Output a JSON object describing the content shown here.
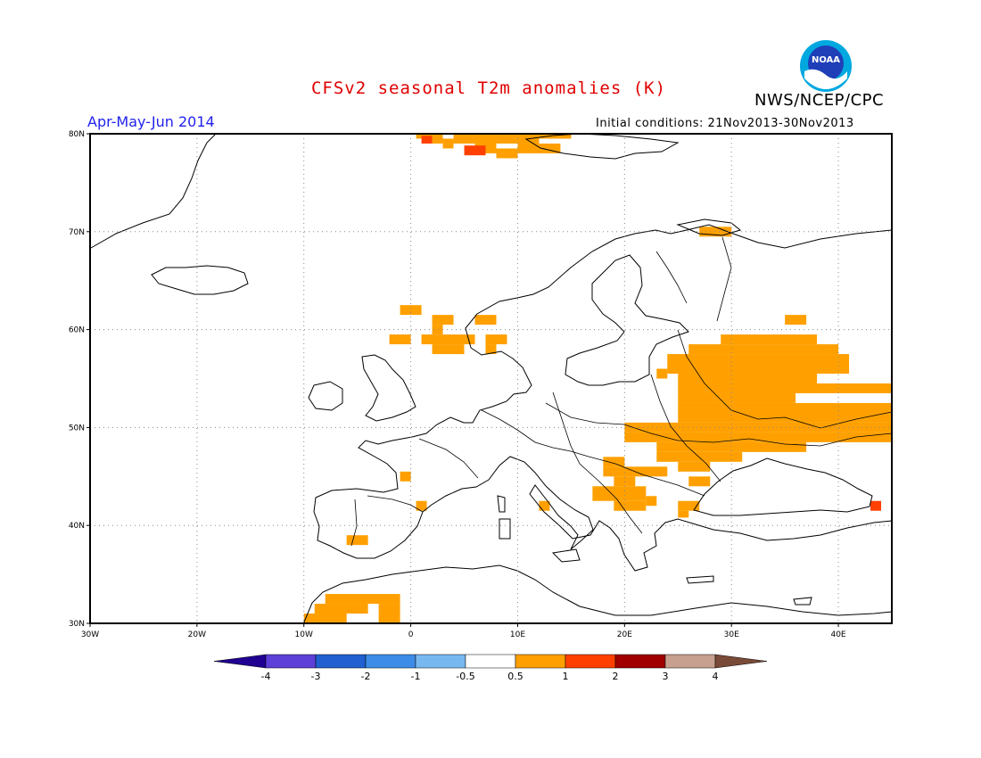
{
  "header": {
    "title": "CFSv2 seasonal T2m anomalies (K)",
    "agency": "NWS/NCEP/CPC",
    "period": "Apr-May-Jun 2014",
    "initial_conditions": "Initial conditions: 21Nov2013-30Nov2013",
    "logo_text": "NOAA"
  },
  "map": {
    "lon_range": [
      -30,
      45
    ],
    "lat_range": [
      30,
      80
    ],
    "lon_ticks": [
      {
        "value": -30,
        "label": "30W"
      },
      {
        "value": -20,
        "label": "20W"
      },
      {
        "value": -10,
        "label": "10W"
      },
      {
        "value": 0,
        "label": "0"
      },
      {
        "value": 10,
        "label": "10E"
      },
      {
        "value": 20,
        "label": "20E"
      },
      {
        "value": 30,
        "label": "30E"
      },
      {
        "value": 40,
        "label": "40E"
      }
    ],
    "lat_ticks": [
      {
        "value": 30,
        "label": "30N"
      },
      {
        "value": 40,
        "label": "40N"
      },
      {
        "value": 50,
        "label": "50N"
      },
      {
        "value": 60,
        "label": "60N"
      },
      {
        "value": 70,
        "label": "70N"
      },
      {
        "value": 80,
        "label": "80N"
      }
    ],
    "grid": "dotted",
    "anomaly_cells": [
      {
        "lon": [
          0.5,
          2
        ],
        "lat": [
          79.5,
          80
        ],
        "level": "0.5-1"
      },
      {
        "lon": [
          2,
          3
        ],
        "lat": [
          79,
          80
        ],
        "level": "0.5-1"
      },
      {
        "lon": [
          4,
          12
        ],
        "lat": [
          79,
          80
        ],
        "level": "0.5-1"
      },
      {
        "lon": [
          12,
          15
        ],
        "lat": [
          79.5,
          80
        ],
        "level": "0.5-1"
      },
      {
        "lon": [
          3,
          4
        ],
        "lat": [
          78.5,
          79.5
        ],
        "level": "0.5-1"
      },
      {
        "lon": [
          6,
          8
        ],
        "lat": [
          78,
          79
        ],
        "level": "0.5-1"
      },
      {
        "lon": [
          10,
          14
        ],
        "lat": [
          78,
          79
        ],
        "level": "0.5-1"
      },
      {
        "lon": [
          8,
          10
        ],
        "lat": [
          77.5,
          78.5
        ],
        "level": "0.5-1"
      },
      {
        "lon": [
          1,
          2
        ],
        "lat": [
          79,
          79.8
        ],
        "level": "1-2"
      },
      {
        "lon": [
          5,
          7
        ],
        "lat": [
          77.8,
          78.8
        ],
        "level": "1-2"
      },
      {
        "lon": [
          27,
          30
        ],
        "lat": [
          69.5,
          70.5
        ],
        "level": "0.5-1"
      },
      {
        "lon": [
          -1,
          1
        ],
        "lat": [
          61.5,
          62.5
        ],
        "level": "0.5-1"
      },
      {
        "lon": [
          2,
          4
        ],
        "lat": [
          60.5,
          61.5
        ],
        "level": "0.5-1"
      },
      {
        "lon": [
          2,
          3
        ],
        "lat": [
          59.5,
          60.5
        ],
        "level": "0.5-1"
      },
      {
        "lon": [
          6,
          8
        ],
        "lat": [
          60.5,
          61.5
        ],
        "level": "0.5-1"
      },
      {
        "lon": [
          35,
          37
        ],
        "lat": [
          60.5,
          61.5
        ],
        "level": "0.5-1"
      },
      {
        "lon": [
          -2,
          0
        ],
        "lat": [
          58.5,
          59.5
        ],
        "level": "0.5-1"
      },
      {
        "lon": [
          1,
          6
        ],
        "lat": [
          58.5,
          59.5
        ],
        "level": "0.5-1"
      },
      {
        "lon": [
          2,
          5
        ],
        "lat": [
          57.5,
          58.5
        ],
        "level": "0.5-1"
      },
      {
        "lon": [
          7,
          9
        ],
        "lat": [
          58.5,
          59.5
        ],
        "level": "0.5-1"
      },
      {
        "lon": [
          7,
          8
        ],
        "lat": [
          57.5,
          58.5
        ],
        "level": "0.5-1"
      },
      {
        "lon": [
          29,
          38
        ],
        "lat": [
          58.5,
          59.5
        ],
        "level": "0.5-1"
      },
      {
        "lon": [
          26,
          40
        ],
        "lat": [
          57.5,
          58.5
        ],
        "level": "0.5-1"
      },
      {
        "lon": [
          24,
          41
        ],
        "lat": [
          55.5,
          57.5
        ],
        "level": "0.5-1"
      },
      {
        "lon": [
          23,
          24
        ],
        "lat": [
          55,
          56
        ],
        "level": "0.5-1"
      },
      {
        "lon": [
          25,
          38
        ],
        "lat": [
          54.5,
          55.5
        ],
        "level": "0.5-1"
      },
      {
        "lon": [
          25,
          45
        ],
        "lat": [
          53.5,
          54.5
        ],
        "level": "0.5-1"
      },
      {
        "lon": [
          25,
          36
        ],
        "lat": [
          52.5,
          53.5
        ],
        "level": "0.5-1"
      },
      {
        "lon": [
          25,
          45
        ],
        "lat": [
          50.5,
          52.5
        ],
        "level": "0.5-1"
      },
      {
        "lon": [
          20,
          45
        ],
        "lat": [
          49.5,
          50.5
        ],
        "level": "0.5-1"
      },
      {
        "lon": [
          20,
          45
        ],
        "lat": [
          48.5,
          49.5
        ],
        "level": "0.5-1"
      },
      {
        "lon": [
          23,
          37
        ],
        "lat": [
          47.5,
          48.5
        ],
        "level": "0.5-1"
      },
      {
        "lon": [
          23,
          31
        ],
        "lat": [
          46.5,
          47.5
        ],
        "level": "0.5-1"
      },
      {
        "lon": [
          25,
          28
        ],
        "lat": [
          45.5,
          46.5
        ],
        "level": "0.5-1"
      },
      {
        "lon": [
          18,
          20
        ],
        "lat": [
          46,
          47
        ],
        "level": "0.5-1"
      },
      {
        "lon": [
          18,
          24
        ],
        "lat": [
          45,
          46
        ],
        "level": "0.5-1"
      },
      {
        "lon": [
          19,
          21
        ],
        "lat": [
          44,
          45
        ],
        "level": "0.5-1"
      },
      {
        "lon": [
          26,
          28
        ],
        "lat": [
          44,
          45
        ],
        "level": "0.5-1"
      },
      {
        "lon": [
          17,
          22
        ],
        "lat": [
          42.5,
          44
        ],
        "level": "0.5-1"
      },
      {
        "lon": [
          22,
          23
        ],
        "lat": [
          42,
          43
        ],
        "level": "0.5-1"
      },
      {
        "lon": [
          19,
          22
        ],
        "lat": [
          41.5,
          42.5
        ],
        "level": "0.5-1"
      },
      {
        "lon": [
          12,
          13
        ],
        "lat": [
          41.5,
          42.5
        ],
        "level": "0.5-1"
      },
      {
        "lon": [
          25,
          27
        ],
        "lat": [
          41.5,
          42.5
        ],
        "level": "0.5-1"
      },
      {
        "lon": [
          25,
          26
        ],
        "lat": [
          40.8,
          41.5
        ],
        "level": "0.5-1"
      },
      {
        "lon": [
          -1,
          0
        ],
        "lat": [
          44.5,
          45.5
        ],
        "level": "0.5-1"
      },
      {
        "lon": [
          0.5,
          1.5
        ],
        "lat": [
          41.5,
          42.5
        ],
        "level": "0.5-1"
      },
      {
        "lon": [
          -6,
          -4
        ],
        "lat": [
          38,
          39
        ],
        "level": "0.5-1"
      },
      {
        "lon": [
          -8,
          -1
        ],
        "lat": [
          32,
          33
        ],
        "level": "0.5-1"
      },
      {
        "lon": [
          -9,
          -4
        ],
        "lat": [
          31,
          32
        ],
        "level": "0.5-1"
      },
      {
        "lon": [
          -10,
          -6
        ],
        "lat": [
          30,
          31
        ],
        "level": "0.5-1"
      },
      {
        "lon": [
          -3,
          -1
        ],
        "lat": [
          30,
          32
        ],
        "level": "0.5-1"
      },
      {
        "lon": [
          43,
          44
        ],
        "lat": [
          41.5,
          42.5
        ],
        "level": "1-2"
      }
    ]
  },
  "colorbar": {
    "levels": [
      "-4",
      "-3",
      "-2",
      "-1",
      "-0.5",
      "0.5",
      "1",
      "2",
      "3",
      "4"
    ],
    "colors": [
      "#200090",
      "#5c40d8",
      "#2060d0",
      "#3c8ce8",
      "#78b8f0",
      "#ffffff",
      "#ffa000",
      "#ff4000",
      "#a00000",
      "#c8a090",
      "#7a4a38"
    ],
    "level_colors": {
      "0.5-1": "#ffa000",
      "1-2": "#ff4000"
    }
  }
}
